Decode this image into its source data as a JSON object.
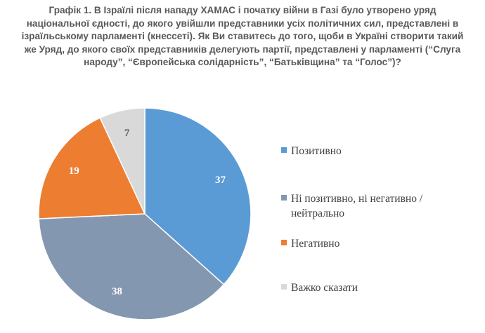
{
  "chart_data": {
    "type": "pie",
    "title_lines": [
      "Графік 1. В Ізраїлі після нападу ХАМАС і початку війни в Газі було утворено уряд",
      "національної єдності, до якого увійшли представники усіх політичних сил, представлені в",
      "ізраїльському парламенті (кнессеті). Як Ви ставитесь до того, щоби в Україні створити такий",
      "же Уряд, до якого своїх представників делегують партії, представлені у парламенті (“Слуга",
      "народу”, “Європейська солідарність”, “Батьківщина” та “Голос”)?"
    ],
    "categories": [
      "Позитивно",
      "Ні позитивно, ні негативно /\nнейтрально",
      "Негативно",
      "Важко сказати"
    ],
    "values": [
      37,
      38,
      19,
      7
    ],
    "data_labels": [
      "37",
      "38",
      "19",
      "7"
    ],
    "colors": [
      "#5b9bd5",
      "#8497b0",
      "#ed7d31",
      "#d9d9d9"
    ],
    "label_colors": [
      "#ffffff",
      "#ffffff",
      "#ffffff",
      "#595959"
    ],
    "start_angle_deg": 0,
    "direction": "clockwise",
    "legend_position": "right"
  }
}
